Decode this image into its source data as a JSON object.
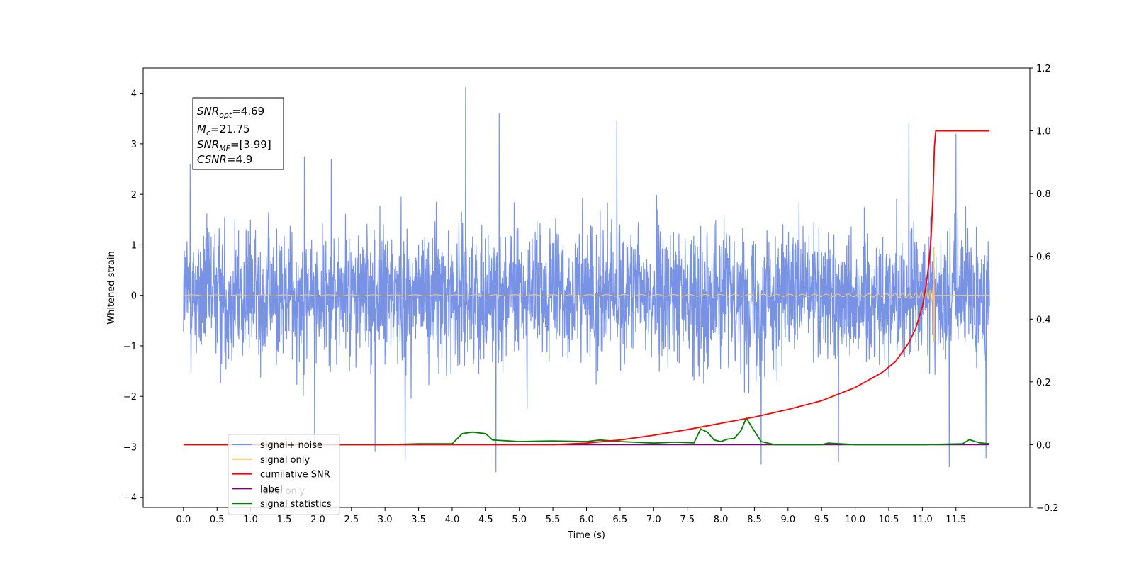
{
  "chart_data": {
    "type": "line",
    "xlabel": "Time (s)",
    "ylabel_left": "Whitened strain",
    "ylabel_right": "",
    "xlim": [
      -0.6,
      12.6
    ],
    "ylim_left": [
      -4.2,
      4.5
    ],
    "ylim_right": [
      -0.2,
      1.2
    ],
    "x_ticks": [
      0.0,
      0.5,
      1.0,
      1.5,
      2.0,
      2.5,
      3.0,
      3.5,
      4.0,
      4.5,
      5.0,
      5.5,
      6.0,
      6.5,
      7.0,
      7.5,
      8.0,
      8.5,
      9.0,
      9.5,
      10.0,
      10.5,
      11.0,
      11.5
    ],
    "x_tick_labels": [
      "0.0",
      "0.5",
      "1.0",
      "1.5",
      "2.0",
      "2.5",
      "3.0",
      "3.5",
      "4.0",
      "4.5",
      "5.0",
      "5.5",
      "6.0",
      "6.5",
      "7.0",
      "7.5",
      "8.0",
      "8.5",
      "9.0",
      "9.5",
      "10.0",
      "10.5",
      "11.0",
      "11.5"
    ],
    "y_left_ticks": [
      -4,
      -3,
      -2,
      -1,
      0,
      1,
      2,
      3,
      4
    ],
    "y_left_tick_labels": [
      "−4",
      "−3",
      "−2",
      "−1",
      "0",
      "1",
      "2",
      "3",
      "4"
    ],
    "y_right_ticks": [
      -0.2,
      0.0,
      0.2,
      0.4,
      0.6,
      0.8,
      1.0,
      1.2
    ],
    "y_right_tick_labels": [
      "−0.2",
      "0.0",
      "0.2",
      "0.4",
      "0.6",
      "0.8",
      "1.0",
      "1.2"
    ],
    "grid": false,
    "legend_position": "lower-left",
    "series": [
      {
        "name": "signal+ noise",
        "color": "#7893e6",
        "axis": "left",
        "kind": "noise",
        "x_range": [
          0.0,
          12.0
        ],
        "typical_range": [
          -2.0,
          2.0
        ],
        "peaks": [
          {
            "x": 4.2,
            "y": 4.12
          },
          {
            "x": 4.7,
            "y": 3.6
          },
          {
            "x": 6.45,
            "y": 3.45
          },
          {
            "x": 0.1,
            "y": 2.6
          },
          {
            "x": 11.5,
            "y": 3.2
          },
          {
            "x": 10.8,
            "y": 3.42
          },
          {
            "x": 1.8,
            "y": 2.75
          },
          {
            "x": 2.2,
            "y": 2.7
          }
        ],
        "troughs": [
          {
            "x": 4.65,
            "y": -3.5
          },
          {
            "x": 3.3,
            "y": -3.25
          },
          {
            "x": 9.75,
            "y": -3.3
          },
          {
            "x": 11.4,
            "y": -3.4
          },
          {
            "x": 8.6,
            "y": -3.35
          },
          {
            "x": 2.85,
            "y": -3.1
          },
          {
            "x": 11.95,
            "y": -3.22
          },
          {
            "x": 1.95,
            "y": -3.0
          }
        ]
      },
      {
        "name": "signal only",
        "color": "#f6c46a",
        "axis": "left",
        "kind": "chirp",
        "x_range": [
          0.0,
          12.0
        ],
        "merger_time": 11.18,
        "peak_amplitude": 0.95,
        "min_amplitude": -0.92
      },
      {
        "name": "cumilative SNR",
        "color": "#ff0000",
        "axis": "right",
        "x": [
          0.0,
          2.0,
          4.0,
          5.5,
          6.0,
          6.5,
          7.0,
          7.5,
          8.0,
          8.5,
          9.0,
          9.5,
          10.0,
          10.4,
          10.6,
          10.8,
          10.9,
          11.0,
          11.05,
          11.1,
          11.13,
          11.16,
          11.18,
          11.2,
          12.0
        ],
        "values": [
          0.0,
          0.0,
          0.0,
          0.0,
          0.005,
          0.015,
          0.03,
          0.048,
          0.068,
          0.088,
          0.112,
          0.14,
          0.182,
          0.23,
          0.265,
          0.325,
          0.37,
          0.44,
          0.5,
          0.58,
          0.66,
          0.8,
          0.95,
          1.0,
          1.0
        ]
      },
      {
        "name": "label",
        "color": "#800080",
        "axis": "right",
        "x": [
          0.0,
          12.0
        ],
        "values": [
          0.0,
          0.0
        ]
      },
      {
        "name": "signal statistics",
        "color": "#008000",
        "axis": "right",
        "x": [
          0.0,
          3.0,
          3.5,
          4.0,
          4.15,
          4.3,
          4.5,
          4.6,
          5.0,
          5.5,
          6.0,
          6.2,
          6.5,
          7.0,
          7.3,
          7.6,
          7.7,
          7.8,
          7.9,
          8.0,
          8.1,
          8.2,
          8.3,
          8.38,
          8.45,
          8.6,
          8.8,
          9.0,
          9.5,
          9.6,
          10.0,
          11.0,
          11.6,
          11.7,
          11.85,
          12.0
        ],
        "values": [
          0.0,
          0.0,
          0.003,
          0.003,
          0.035,
          0.04,
          0.035,
          0.015,
          0.01,
          0.012,
          0.01,
          0.015,
          0.01,
          0.005,
          0.008,
          0.006,
          0.05,
          0.04,
          0.015,
          0.01,
          0.018,
          0.02,
          0.045,
          0.085,
          0.06,
          0.01,
          0.0,
          0.0,
          0.0,
          0.005,
          0.0,
          0.0,
          0.003,
          0.016,
          0.006,
          0.003
        ]
      }
    ],
    "legend_entries": [
      {
        "name": "signal+ noise",
        "color": "#7893e6"
      },
      {
        "name": "signal only",
        "color": "#f6c46a"
      },
      {
        "name": "cumilative SNR",
        "color": "#ff0000"
      },
      {
        "name": "label",
        "color": "#800080"
      },
      {
        "name": "signal statistics",
        "color": "#008000"
      }
    ],
    "legend_overlapped_text": "label only",
    "stats_box": {
      "snr_opt": {
        "symbol": "SNR",
        "sub": "opt",
        "value": "=4.69"
      },
      "mc": {
        "symbol": "M",
        "sub": "c",
        "value": "=21.75"
      },
      "snr_mf": {
        "symbol": "SNR",
        "sub": "MF",
        "value": "=[3.99]"
      },
      "csnr": {
        "symbol": "CSNR",
        "value": "=4.9"
      }
    }
  }
}
